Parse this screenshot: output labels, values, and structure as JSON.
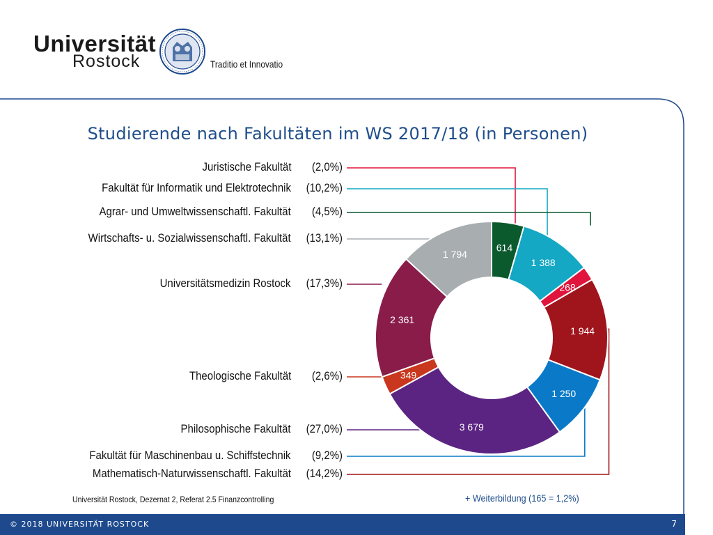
{
  "header": {
    "university": "Universität",
    "city": "Rostock",
    "tagline": "Traditio et Innovatio",
    "seal_icon": "university-seal-icon"
  },
  "footer": {
    "copyright": "© 2018 UNIVERSITÄT ROSTOCK",
    "page_number": "7"
  },
  "source_note": "Universität Rostock, Dezernat 2, Referat 2.5 Finanzcontrolling",
  "extra_note": "+ Weiterbildung (165 = 1,2%)",
  "colors": {
    "brand_blue": "#1e4a8d",
    "title_blue": "#1f4e8c"
  },
  "chart_data": {
    "type": "pie",
    "variant": "donut",
    "title": "Studierende nach Fakultäten im WS 2017/18 (in Personen)",
    "slices": [
      {
        "name": "Agrar- und Umweltwissenschaftl. Fakultät",
        "value": 614,
        "label": "614",
        "pct": "(4,5%)",
        "color": "#0b5a2e"
      },
      {
        "name": "Fakultät für Informatik und Elektrotechnik",
        "value": 1388,
        "label": "1 388",
        "pct": "(10,2%)",
        "color": "#14a8c4"
      },
      {
        "name": "Juristische Fakultät",
        "value": 268,
        "label": "268",
        "pct": "(2,0%)",
        "color": "#e0143c"
      },
      {
        "name": "Mathematisch-Naturwissenschaftl. Fakultät",
        "value": 1944,
        "label": "1 944",
        "pct": "(14,2%)",
        "color": "#a0141c"
      },
      {
        "name": "Fakultät für Maschinenbau u. Schiffstechnik",
        "value": 1250,
        "label": "1 250",
        "pct": "(9,2%)",
        "color": "#0a7ac8"
      },
      {
        "name": "Philosophische Fakultät",
        "value": 3679,
        "label": "3 679",
        "pct": "(27,0%)",
        "color": "#5b2482"
      },
      {
        "name": "Theologische Fakultät",
        "value": 349,
        "label": "349",
        "pct": "(2,6%)",
        "color": "#c8371e"
      },
      {
        "name": "Universitätsmedizin Rostock",
        "value": 2361,
        "label": "2 361",
        "pct": "(17,3%)",
        "color": "#8a1c4a"
      },
      {
        "name": "Wirtschafts- u. Sozialwissenschaftl. Fakultät",
        "value": 1794,
        "label": "1 794",
        "pct": "(13,1%)",
        "color": "#a8adb0"
      }
    ]
  }
}
